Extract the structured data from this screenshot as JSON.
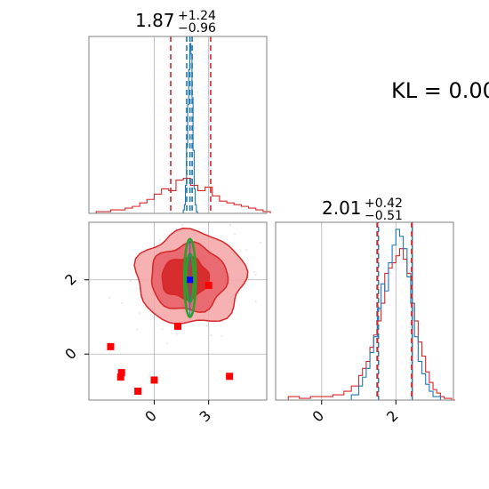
{
  "colors": {
    "red": "#d62728",
    "blue": "#1f77b4",
    "green": "#2ca02c",
    "marker_red": "#ff0000",
    "marker_blue": "#0000ff",
    "grid": "#b0b0b0",
    "axis": "#808080"
  },
  "annotation": {
    "text": "KL = 0.00"
  },
  "chart_data": [
    {
      "type": "histogram",
      "panel": "marginal-param-1",
      "title": {
        "median": "1.87",
        "plus": "+1.24",
        "minus": "−0.96"
      },
      "xlim": [
        -3.6,
        6.2
      ],
      "grid_x": [
        0,
        3
      ],
      "red_quantiles": [
        0.91,
        3.11
      ],
      "blue_quantiles": [
        1.79,
        2.09
      ],
      "blue_median": 1.97,
      "series": [
        {
          "color": "red",
          "x": [
            -3.6,
            -3.2,
            -2.8,
            -2.4,
            -2.0,
            -1.6,
            -1.2,
            -0.8,
            -0.4,
            0.0,
            0.4,
            0.8,
            1.2,
            1.6,
            2.0,
            2.4,
            2.8,
            3.2,
            3.6,
            4.0,
            4.4,
            4.8,
            5.2,
            5.6,
            6.0
          ],
          "y": [
            0,
            0.01,
            0.01,
            0.02,
            0.02,
            0.03,
            0.04,
            0.06,
            0.08,
            0.11,
            0.14,
            0.13,
            0.19,
            0.2,
            0.16,
            0.13,
            0.15,
            0.1,
            0.07,
            0.06,
            0.05,
            0.04,
            0.03,
            0.02,
            0.01
          ]
        },
        {
          "color": "blue",
          "x": [
            1.6,
            1.66,
            1.72,
            1.78,
            1.84,
            1.9,
            1.96,
            2.02,
            2.08,
            2.14,
            2.2,
            2.26,
            2.32
          ],
          "y": [
            0.02,
            0.05,
            0.16,
            0.38,
            0.62,
            0.82,
            0.97,
            0.91,
            0.66,
            0.36,
            0.14,
            0.05,
            0.01
          ]
        }
      ]
    },
    {
      "type": "contour",
      "panel": "joint-param-1-param-2",
      "xlim": [
        -3.6,
        6.2
      ],
      "ylim": [
        -1.24,
        3.55
      ],
      "x_ticks": [
        {
          "value": 0,
          "label": "0"
        },
        {
          "value": 3,
          "label": "3"
        }
      ],
      "y_ticks": [
        {
          "value": 0,
          "label": "0"
        },
        {
          "value": 2,
          "label": "2"
        }
      ],
      "red_contours": [
        {
          "level": "outer",
          "cx": 2.0,
          "cy": 2.05,
          "rx": 3.0,
          "ry": 1.25
        },
        {
          "level": "middle",
          "cx": 1.9,
          "cy": 2.05,
          "rx": 2.1,
          "ry": 0.9
        },
        {
          "level": "inner",
          "cx": 1.7,
          "cy": 2.05,
          "rx": 1.3,
          "ry": 0.55
        }
      ],
      "green_contours": [
        {
          "cx": 1.97,
          "cy": 2.05,
          "rx": 0.32,
          "ry": 1.05
        },
        {
          "cx": 1.97,
          "cy": 2.05,
          "rx": 0.2,
          "ry": 0.65
        }
      ],
      "red_points": [
        {
          "x": -2.4,
          "y": 0.2
        },
        {
          "x": -1.8,
          "y": -0.5
        },
        {
          "x": -1.85,
          "y": -0.62
        },
        {
          "x": -0.9,
          "y": -1.0
        },
        {
          "x": 0.0,
          "y": -0.7
        },
        {
          "x": 1.3,
          "y": 0.75
        },
        {
          "x": 3.0,
          "y": 1.85
        },
        {
          "x": 4.15,
          "y": -0.6
        }
      ],
      "blue_point": {
        "x": 1.97,
        "y": 2.0
      }
    },
    {
      "type": "histogram",
      "panel": "marginal-param-2",
      "title": {
        "median": "2.01",
        "plus": "+0.42",
        "minus": "−0.51"
      },
      "xlim": [
        -1.24,
        3.55
      ],
      "grid_x": [
        0,
        2
      ],
      "x_ticks": [
        {
          "value": 0,
          "label": "0"
        },
        {
          "value": 2,
          "label": "2"
        }
      ],
      "red_quantiles": [
        1.5,
        2.43
      ],
      "blue_quantiles": [
        1.52,
        2.43
      ],
      "series": [
        {
          "color": "red",
          "x": [
            -1.2,
            -0.9,
            -0.6,
            -0.3,
            0.0,
            0.3,
            0.6,
            0.8,
            1.0,
            1.1,
            1.2,
            1.3,
            1.4,
            1.5,
            1.6,
            1.7,
            1.8,
            1.9,
            2.0,
            2.1,
            2.2,
            2.3,
            2.4,
            2.5,
            2.6,
            2.7,
            2.8,
            2.9,
            3.0,
            3.1,
            3.2,
            3.3,
            3.5
          ],
          "y": [
            0.0,
            0.02,
            0.01,
            0.02,
            0.02,
            0.03,
            0.05,
            0.08,
            0.14,
            0.18,
            0.22,
            0.3,
            0.37,
            0.45,
            0.55,
            0.72,
            0.75,
            0.78,
            0.82,
            0.86,
            0.8,
            0.72,
            0.55,
            0.45,
            0.33,
            0.25,
            0.16,
            0.1,
            0.06,
            0.04,
            0.02,
            0.01,
            0.0
          ]
        },
        {
          "color": "blue",
          "x": [
            0.6,
            0.8,
            1.0,
            1.1,
            1.2,
            1.3,
            1.4,
            1.5,
            1.6,
            1.7,
            1.8,
            1.9,
            2.0,
            2.1,
            2.2,
            2.3,
            2.4,
            2.5,
            2.6,
            2.7,
            2.8,
            2.9,
            3.0,
            3.2
          ],
          "y": [
            0.0,
            0.03,
            0.08,
            0.13,
            0.18,
            0.27,
            0.36,
            0.52,
            0.66,
            0.62,
            0.78,
            0.88,
            0.97,
            0.93,
            0.86,
            0.7,
            0.55,
            0.36,
            0.22,
            0.15,
            0.09,
            0.05,
            0.02,
            0.0
          ]
        }
      ]
    }
  ]
}
